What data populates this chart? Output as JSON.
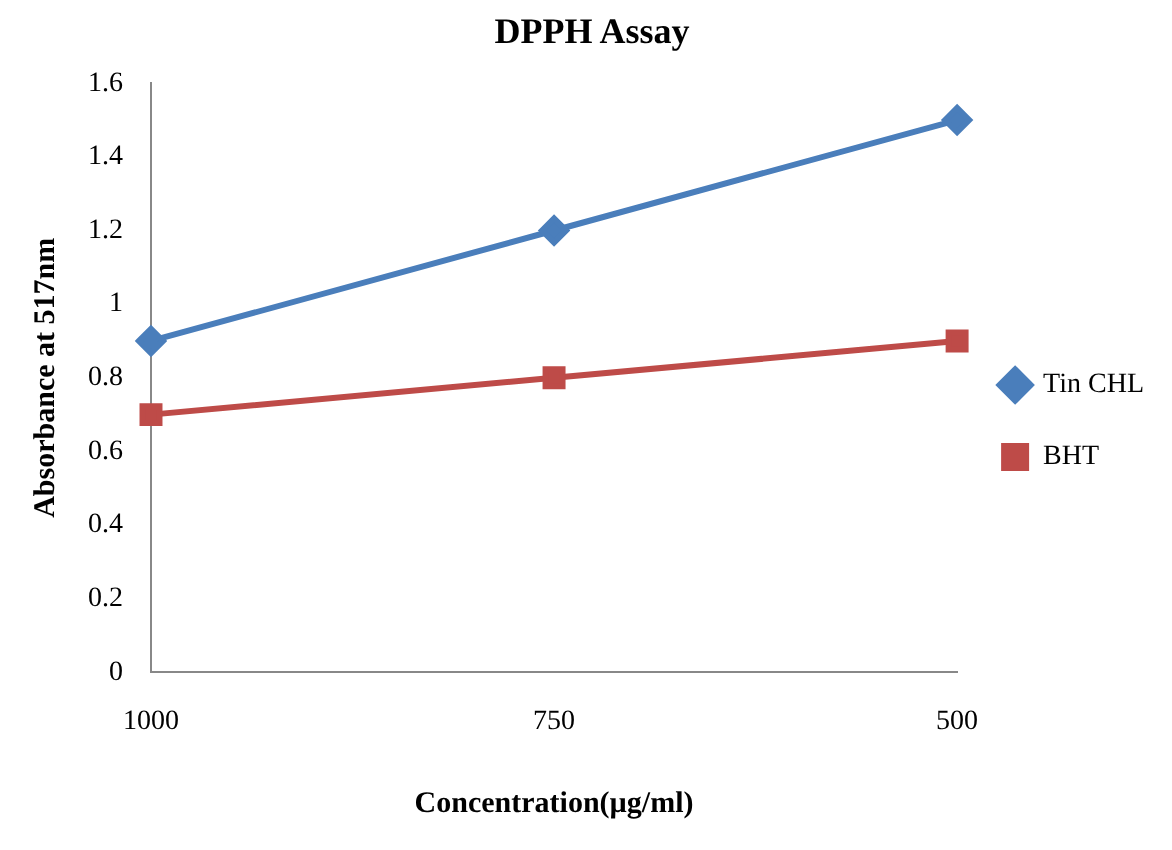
{
  "chart_data": {
    "type": "line",
    "title": "DPPH Assay",
    "xlabel": "Concentration(µg/ml)",
    "ylabel": "Absorbance at 517nm",
    "categories": [
      "1000",
      "750",
      "500"
    ],
    "series": [
      {
        "name": "Tin CHL",
        "color": "#4a7ebb",
        "values": [
          0.9,
          1.2,
          1.5
        ],
        "marker": "diamond"
      },
      {
        "name": "BHT",
        "color": "#be4b48",
        "values": [
          0.7,
          0.8,
          0.9
        ],
        "marker": "square"
      }
    ],
    "ylim": [
      0,
      1.6
    ],
    "yticks": [
      0,
      0.2,
      0.4,
      0.6,
      0.8,
      1,
      1.2,
      1.4,
      1.6
    ],
    "grid": false,
    "legend": "right",
    "line_style": "solid"
  }
}
